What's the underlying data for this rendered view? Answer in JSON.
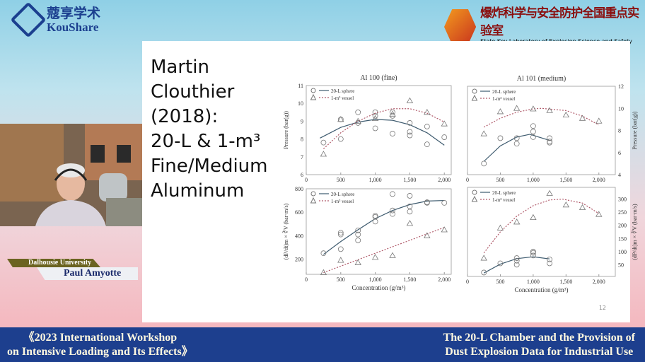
{
  "header": {
    "logo_cn": "蔻享学术",
    "logo_en": "KouShare",
    "lab_cn": "爆炸科学与安全防护全国重点实验室",
    "lab_en": "State Key Laboratory of Explosion Science and Safety Protection"
  },
  "slide": {
    "title": "Martin\nClouthier\n(2018):\n20-L & 1-m³\nFine/Medium\nAluminum",
    "page": "12"
  },
  "speaker": {
    "affiliation": "Dalhousie University",
    "name": "Paul Amyotte"
  },
  "banner": {
    "left_line1": "《2023 International Workshop",
    "left_line2": "on Intensive Loading and Its Effects》",
    "right_line1": "The 20-L Chamber and the Provision of",
    "right_line2": "Dust Explosion Data for Industrial Use"
  },
  "colors": {
    "sphere": "#3d5a6e",
    "vessel": "#b05a6a",
    "banner": "#1d3f8e"
  },
  "chart_data": [
    {
      "type": "scatter",
      "title": "Al 100 (fine)",
      "ylabel": "Pressure (bar(g))",
      "xlabel": "",
      "xlim": [
        0,
        2100
      ],
      "ylim": [
        6,
        11
      ],
      "xticks": [
        "0",
        "500",
        "1,000",
        "1,500",
        "2,000"
      ],
      "yticks": [
        6,
        7,
        8,
        9,
        10,
        11
      ],
      "legend": "top-left",
      "series": [
        {
          "name": "20-L sphere",
          "marker": "circle",
          "points": [
            [
              250,
              7.8
            ],
            [
              500,
              9.1
            ],
            [
              500,
              8.0
            ],
            [
              750,
              9.5
            ],
            [
              750,
              8.9
            ],
            [
              1000,
              9.5
            ],
            [
              1000,
              9.3
            ],
            [
              1000,
              8.6
            ],
            [
              1250,
              9.5
            ],
            [
              1250,
              9.3
            ],
            [
              1250,
              8.3
            ],
            [
              1500,
              8.9
            ],
            [
              1500,
              8.4
            ],
            [
              1500,
              8.2
            ],
            [
              1750,
              8.7
            ],
            [
              1750,
              7.7
            ],
            [
              2000,
              8.1
            ]
          ],
          "fit": [
            [
              200,
              8.05
            ],
            [
              500,
              8.65
            ],
            [
              750,
              8.95
            ],
            [
              1000,
              9.1
            ],
            [
              1250,
              9.05
            ],
            [
              1500,
              8.8
            ],
            [
              1750,
              8.35
            ],
            [
              2000,
              7.65
            ]
          ]
        },
        {
          "name": "1-m³ vessel",
          "marker": "triangle",
          "points": [
            [
              250,
              7.15
            ],
            [
              500,
              9.1
            ],
            [
              750,
              9.0
            ],
            [
              1000,
              9.15
            ],
            [
              1250,
              9.4
            ],
            [
              1500,
              10.15
            ],
            [
              1750,
              9.5
            ],
            [
              2000,
              8.85
            ]
          ],
          "fit": [
            [
              250,
              7.45
            ],
            [
              500,
              8.35
            ],
            [
              750,
              9.0
            ],
            [
              1000,
              9.45
            ],
            [
              1250,
              9.7
            ],
            [
              1500,
              9.7
            ],
            [
              1750,
              9.45
            ],
            [
              2000,
              8.95
            ]
          ]
        }
      ]
    },
    {
      "type": "scatter",
      "title": "Al 101 (medium)",
      "ylabel": "Pressure (bar(g))",
      "xlabel": "",
      "xlim": [
        0,
        2250
      ],
      "ylim": [
        4,
        12
      ],
      "xticks": [
        "0",
        "500",
        "1,000",
        "1,500",
        "2,000"
      ],
      "yticks": [
        4,
        6,
        8,
        10,
        12
      ],
      "legend": "top-left",
      "series": [
        {
          "name": "20-L sphere",
          "marker": "circle",
          "points": [
            [
              250,
              5.0
            ],
            [
              500,
              7.3
            ],
            [
              750,
              7.3
            ],
            [
              750,
              6.8
            ],
            [
              1000,
              8.4
            ],
            [
              1000,
              7.9
            ],
            [
              1000,
              7.4
            ],
            [
              1250,
              7.3
            ],
            [
              1250,
              7.0
            ],
            [
              1250,
              6.9
            ]
          ],
          "fit": [
            [
              250,
              5.2
            ],
            [
              500,
              6.6
            ],
            [
              750,
              7.4
            ],
            [
              950,
              7.65
            ],
            [
              1250,
              7.1
            ]
          ]
        },
        {
          "name": "1-m³ vessel",
          "marker": "triangle",
          "points": [
            [
              250,
              7.7
            ],
            [
              500,
              9.7
            ],
            [
              750,
              10.0
            ],
            [
              1000,
              9.95
            ],
            [
              1250,
              9.8
            ],
            [
              1500,
              9.4
            ],
            [
              1750,
              9.1
            ],
            [
              2000,
              8.85
            ]
          ],
          "fit": [
            [
              250,
              8.3
            ],
            [
              500,
              9.1
            ],
            [
              750,
              9.65
            ],
            [
              1000,
              9.95
            ],
            [
              1125,
              10.0
            ],
            [
              1500,
              9.8
            ],
            [
              1750,
              9.3
            ],
            [
              2000,
              8.5
            ]
          ]
        }
      ]
    },
    {
      "type": "scatter",
      "title": "",
      "ylabel": "(dP/dt)m × ∛V (bar·m/s)",
      "xlabel": "Concentration (g/m³)",
      "xlim": [
        0,
        2100
      ],
      "ylim": [
        70,
        800
      ],
      "xticks": [
        "0",
        "500",
        "1,000",
        "1,500",
        "2,000"
      ],
      "yticks": [
        200,
        400,
        600,
        800
      ],
      "legend": "top-left",
      "series": [
        {
          "name": "20-L sphere",
          "marker": "circle",
          "points": [
            [
              250,
              250
            ],
            [
              500,
              425
            ],
            [
              500,
              410
            ],
            [
              500,
              285
            ],
            [
              750,
              445
            ],
            [
              750,
              410
            ],
            [
              750,
              360
            ],
            [
              1000,
              570
            ],
            [
              1000,
              560
            ],
            [
              1000,
              520
            ],
            [
              1250,
              755
            ],
            [
              1250,
              615
            ],
            [
              1250,
              585
            ],
            [
              1500,
              740
            ],
            [
              1500,
              650
            ],
            [
              1500,
              605
            ],
            [
              1750,
              685
            ],
            [
              1750,
              680
            ],
            [
              2000,
              680
            ]
          ],
          "fit": [
            [
              250,
              240
            ],
            [
              500,
              350
            ],
            [
              750,
              450
            ],
            [
              1000,
              545
            ],
            [
              1250,
              615
            ],
            [
              1500,
              665
            ],
            [
              1750,
              695
            ],
            [
              2000,
              700
            ]
          ]
        },
        {
          "name": "1-m³ vessel",
          "marker": "triangle",
          "points": [
            [
              250,
              85
            ],
            [
              500,
              190
            ],
            [
              750,
              170
            ],
            [
              1000,
              215
            ],
            [
              1250,
              230
            ],
            [
              1500,
              505
            ],
            [
              1750,
              400
            ],
            [
              2000,
              450
            ]
          ],
          "fit": [
            [
              250,
              85
            ],
            [
              2000,
              470
            ]
          ]
        }
      ]
    },
    {
      "type": "scatter",
      "title": "",
      "ylabel": "(dP/dt)m × ∛V (bar·m/s)",
      "xlabel": "Concentration (g/m³)",
      "xlim": [
        0,
        2250
      ],
      "ylim": [
        5,
        345
      ],
      "xticks": [
        "0",
        "500",
        "1,000",
        "1,500",
        "2,000"
      ],
      "yticks": [
        50,
        100,
        150,
        200,
        250,
        300
      ],
      "legend": "top-left",
      "series": [
        {
          "name": "20-L sphere",
          "marker": "circle",
          "points": [
            [
              250,
              20
            ],
            [
              500,
              55
            ],
            [
              750,
              75
            ],
            [
              750,
              65
            ],
            [
              750,
              50
            ],
            [
              1000,
              100
            ],
            [
              1000,
              95
            ],
            [
              1000,
              85
            ],
            [
              1250,
              70
            ],
            [
              1250,
              55
            ]
          ],
          "fit": [
            [
              250,
              18
            ],
            [
              500,
              52
            ],
            [
              750,
              73
            ],
            [
              1000,
              80
            ],
            [
              1250,
              72
            ]
          ]
        },
        {
          "name": "1-m³ vessel",
          "marker": "triangle",
          "points": [
            [
              250,
              75
            ],
            [
              500,
              190
            ],
            [
              750,
              213
            ],
            [
              1000,
              230
            ],
            [
              1250,
              322
            ],
            [
              1500,
              278
            ],
            [
              1750,
              268
            ],
            [
              2000,
              242
            ]
          ],
          "fit": [
            [
              250,
              95
            ],
            [
              500,
              175
            ],
            [
              750,
              235
            ],
            [
              1000,
              275
            ],
            [
              1250,
              297
            ],
            [
              1450,
              300
            ],
            [
              1750,
              285
            ],
            [
              2000,
              245
            ]
          ]
        }
      ]
    }
  ]
}
